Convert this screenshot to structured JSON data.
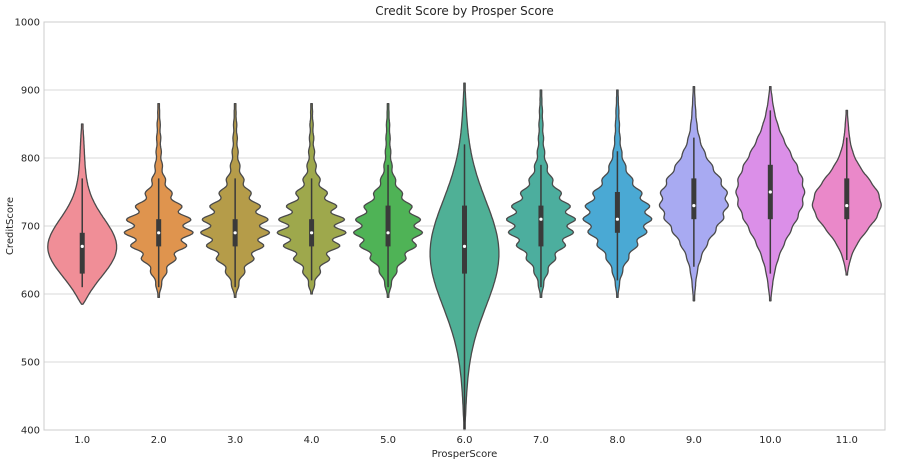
{
  "chart_data": {
    "type": "violin",
    "title": "Credit Score by Prosper Score",
    "xlabel": "ProsperScore",
    "ylabel": "CreditScore",
    "ylim": [
      400,
      1000
    ],
    "yticks": [
      400,
      500,
      600,
      700,
      800,
      900,
      1000
    ],
    "grid": true,
    "categories": [
      "1.0",
      "2.0",
      "3.0",
      "4.0",
      "5.0",
      "6.0",
      "7.0",
      "8.0",
      "9.0",
      "10.0",
      "11.0"
    ],
    "colors": [
      "#f08e97",
      "#df944e",
      "#b59c49",
      "#9ea84c",
      "#4fb356",
      "#4fb096",
      "#4cae9e",
      "#4aa9d4",
      "#a8aaf2",
      "#db8fe8",
      "#ea88c9"
    ],
    "series": [
      {
        "category": "1.0",
        "min": 585,
        "max": 850,
        "q1": 630,
        "median": 670,
        "q3": 690,
        "whisker_low": 610,
        "whisker_high": 770,
        "peaks": [
          660
        ],
        "peak_width": 0.34,
        "wiggle": 0.0
      },
      {
        "category": "2.0",
        "min": 595,
        "max": 880,
        "q1": 670,
        "median": 690,
        "q3": 710,
        "whisker_low": 610,
        "whisker_high": 770,
        "peaks": [
          690
        ],
        "peak_width": 0.27,
        "wiggle": 0.3
      },
      {
        "category": "3.0",
        "min": 595,
        "max": 880,
        "q1": 670,
        "median": 690,
        "q3": 710,
        "whisker_low": 610,
        "whisker_high": 770,
        "peaks": [
          690
        ],
        "peak_width": 0.3,
        "wiggle": 0.3
      },
      {
        "category": "4.0",
        "min": 600,
        "max": 880,
        "q1": 670,
        "median": 690,
        "q3": 710,
        "whisker_low": 620,
        "whisker_high": 770,
        "peaks": [
          690
        ],
        "peak_width": 0.3,
        "wiggle": 0.35
      },
      {
        "category": "5.0",
        "min": 595,
        "max": 880,
        "q1": 670,
        "median": 690,
        "q3": 730,
        "whisker_low": 610,
        "whisker_high": 790,
        "peaks": [
          690
        ],
        "peak_width": 0.28,
        "wiggle": 0.25
      },
      {
        "category": "6.0",
        "min": 400,
        "max": 910,
        "q1": 630,
        "median": 670,
        "q3": 730,
        "whisker_low": 400,
        "whisker_high": 820,
        "peaks": [
          660
        ],
        "peak_width": 0.32,
        "wiggle": 0.0
      },
      {
        "category": "7.0",
        "min": 595,
        "max": 900,
        "q1": 670,
        "median": 710,
        "q3": 730,
        "whisker_low": 610,
        "whisker_high": 790,
        "peaks": [
          700
        ],
        "peak_width": 0.28,
        "wiggle": 0.25
      },
      {
        "category": "8.0",
        "min": 595,
        "max": 900,
        "q1": 690,
        "median": 710,
        "q3": 750,
        "whisker_low": 620,
        "whisker_high": 810,
        "peaks": [
          710
        ],
        "peak_width": 0.28,
        "wiggle": 0.2
      },
      {
        "category": "9.0",
        "min": 590,
        "max": 905,
        "q1": 710,
        "median": 730,
        "q3": 770,
        "whisker_low": 640,
        "whisker_high": 830,
        "peaks": [
          735
        ],
        "peak_width": 0.3,
        "wiggle": 0.1
      },
      {
        "category": "10.0",
        "min": 590,
        "max": 905,
        "q1": 710,
        "median": 750,
        "q3": 790,
        "whisker_low": 630,
        "whisker_high": 870,
        "peaks": [
          750
        ],
        "peak_width": 0.38,
        "wiggle": 0.05
      },
      {
        "category": "11.0",
        "min": 628,
        "max": 870,
        "q1": 710,
        "median": 730,
        "q3": 770,
        "whisker_low": 650,
        "whisker_high": 830,
        "peaks": [
          730
        ],
        "peak_width": 0.33,
        "wiggle": 0.03
      }
    ]
  }
}
